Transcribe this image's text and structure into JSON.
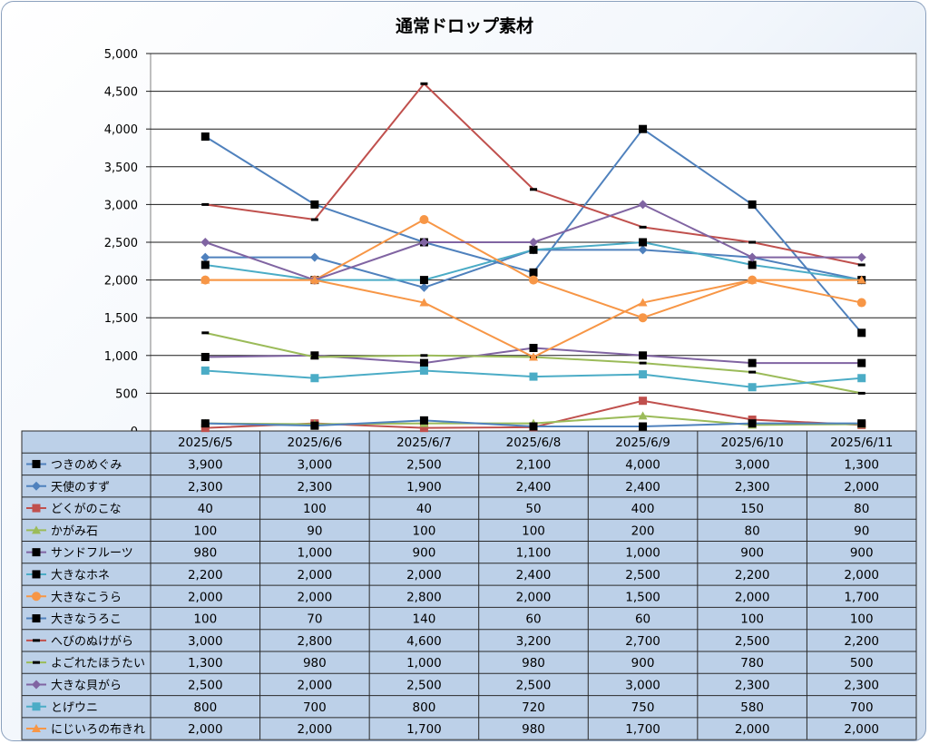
{
  "chart_data": {
    "type": "line",
    "title": "通常ドロップ素材",
    "xlabel": "",
    "ylabel": "",
    "ylim": [
      0,
      5000
    ],
    "yticks": [
      "0",
      "500",
      "1,000",
      "1,500",
      "2,000",
      "2,500",
      "3,000",
      "3,500",
      "4,000",
      "4,500",
      "5,000"
    ],
    "categories": [
      "2025/6/5",
      "2025/6/6",
      "2025/6/7",
      "2025/6/8",
      "2025/6/9",
      "2025/6/10",
      "2025/6/11"
    ],
    "grid": true,
    "legend": "data-table",
    "series": [
      {
        "name": "つきのめぐみ",
        "color": "#4f81bd",
        "marker": "square-black",
        "values": [
          3900,
          3000,
          2500,
          2100,
          4000,
          3000,
          1300
        ],
        "labels": [
          "3,900",
          "3,000",
          "2,500",
          "2,100",
          "4,000",
          "3,000",
          "1,300"
        ]
      },
      {
        "name": "天使のすず",
        "color": "#4f81bd",
        "marker": "diamond",
        "values": [
          2300,
          2300,
          1900,
          2400,
          2400,
          2300,
          2000
        ],
        "labels": [
          "2,300",
          "2,300",
          "1,900",
          "2,400",
          "2,400",
          "2,300",
          "2,000"
        ]
      },
      {
        "name": "どくがのこな",
        "color": "#c0504d",
        "marker": "square",
        "values": [
          40,
          100,
          40,
          50,
          400,
          150,
          80
        ],
        "labels": [
          "40",
          "100",
          "40",
          "50",
          "400",
          "150",
          "80"
        ]
      },
      {
        "name": "かがみ石",
        "color": "#9bbb59",
        "marker": "triangle",
        "values": [
          100,
          90,
          100,
          100,
          200,
          80,
          90
        ],
        "labels": [
          "100",
          "90",
          "100",
          "100",
          "200",
          "80",
          "90"
        ]
      },
      {
        "name": "サンドフルーツ",
        "color": "#8064a2",
        "marker": "square-black",
        "values": [
          980,
          1000,
          900,
          1100,
          1000,
          900,
          900
        ],
        "labels": [
          "980",
          "1,000",
          "900",
          "1,100",
          "1,000",
          "900",
          "900"
        ]
      },
      {
        "name": "大きなホネ",
        "color": "#4bacc6",
        "marker": "square-black",
        "values": [
          2200,
          2000,
          2000,
          2400,
          2500,
          2200,
          2000
        ],
        "labels": [
          "2,200",
          "2,000",
          "2,000",
          "2,400",
          "2,500",
          "2,200",
          "2,000"
        ]
      },
      {
        "name": "大きなこうら",
        "color": "#f79646",
        "marker": "circle",
        "values": [
          2000,
          2000,
          2800,
          2000,
          1500,
          2000,
          1700
        ],
        "labels": [
          "2,000",
          "2,000",
          "2,800",
          "2,000",
          "1,500",
          "2,000",
          "1,700"
        ]
      },
      {
        "name": "大きなうろこ",
        "color": "#4f81bd",
        "marker": "square-black",
        "values": [
          100,
          70,
          140,
          60,
          60,
          100,
          100
        ],
        "labels": [
          "100",
          "70",
          "140",
          "60",
          "60",
          "100",
          "100"
        ]
      },
      {
        "name": "へびのぬけがら",
        "color": "#c0504d",
        "marker": "dash",
        "values": [
          3000,
          2800,
          4600,
          3200,
          2700,
          2500,
          2200
        ],
        "labels": [
          "3,000",
          "2,800",
          "4,600",
          "3,200",
          "2,700",
          "2,500",
          "2,200"
        ]
      },
      {
        "name": "よごれたほうたい",
        "color": "#9bbb59",
        "marker": "dash",
        "values": [
          1300,
          980,
          1000,
          980,
          900,
          780,
          500
        ],
        "labels": [
          "1,300",
          "980",
          "1,000",
          "980",
          "900",
          "780",
          "500"
        ]
      },
      {
        "name": "大きな貝がら",
        "color": "#8064a2",
        "marker": "diamond",
        "values": [
          2500,
          2000,
          2500,
          2500,
          3000,
          2300,
          2300
        ],
        "labels": [
          "2,500",
          "2,000",
          "2,500",
          "2,500",
          "3,000",
          "2,300",
          "2,300"
        ]
      },
      {
        "name": "とげウニ",
        "color": "#4bacc6",
        "marker": "square",
        "values": [
          800,
          700,
          800,
          720,
          750,
          580,
          700
        ],
        "labels": [
          "800",
          "700",
          "800",
          "720",
          "750",
          "580",
          "700"
        ]
      },
      {
        "name": "にじいろの布きれ",
        "color": "#f79646",
        "marker": "triangle",
        "values": [
          2000,
          2000,
          1700,
          980,
          1700,
          2000,
          2000
        ],
        "labels": [
          "2,000",
          "2,000",
          "1,700",
          "980",
          "1,700",
          "2,000",
          "2,000"
        ]
      }
    ]
  }
}
